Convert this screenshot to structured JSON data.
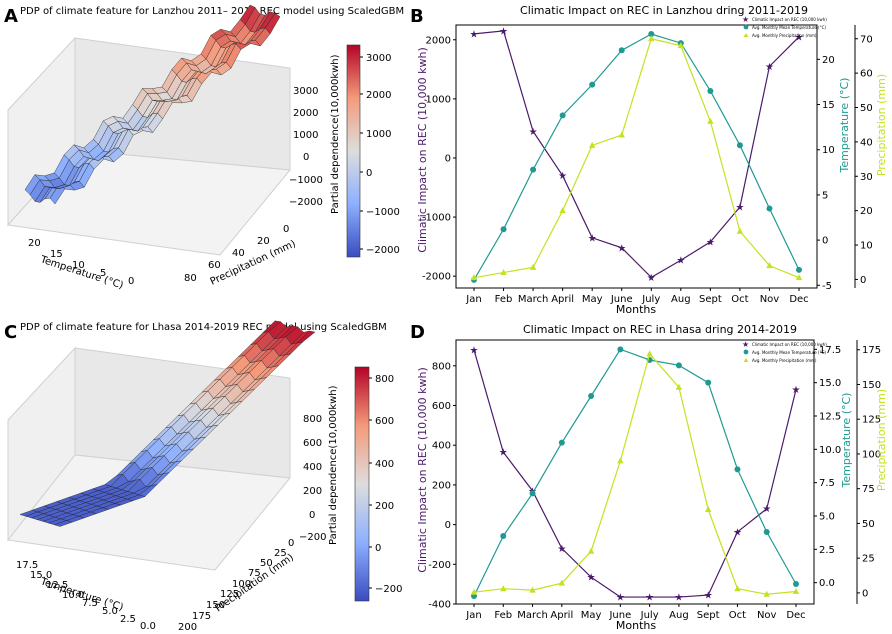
{
  "colors": {
    "impact": "#4b1a6b",
    "temp": "#1f9a93",
    "precip": "#c6e11e",
    "surfHigh": "#c3443a",
    "surfLow": "#4466c8",
    "surfMid": "#dcdcdc"
  },
  "panels": {
    "A": {
      "letter": "A",
      "title": "PDP of climate feature for Lanzhou 2011– 2019 REC model using ScaledGBM",
      "xlabel": "Temperature (°C)",
      "ylabel": "Precipitation (mm)",
      "zlabel": "Partial dependence(10,000kwh)",
      "xticks": [
        "20",
        "15",
        "10",
        "5",
        "0"
      ],
      "yticks": [
        "0",
        "20",
        "40",
        "60",
        "80"
      ],
      "zticks": [
        "3000",
        "2000",
        "1000",
        "0",
        "−1000",
        "−2000"
      ],
      "colorbar_ticks": [
        "3000",
        "2000",
        "1000",
        "0",
        "−1000",
        "−2000"
      ]
    },
    "C": {
      "letter": "C",
      "title": "PDP of climate feature for Lhasa 2014-2019 REC model using ScaledGBM",
      "xlabel": "Temperature (°C)",
      "ylabel": "Precipitation (mm)",
      "zlabel": "Partial dependence(10,000kwh)",
      "xticks": [
        "17.5",
        "15.0",
        "12.5",
        "10.0",
        "7.5",
        "5.0",
        "2.5",
        "0.0"
      ],
      "yticks": [
        "0",
        "25",
        "50",
        "75",
        "100",
        "125",
        "150",
        "175",
        "200"
      ],
      "zticks": [
        "800",
        "600",
        "400",
        "200",
        "0",
        "−200"
      ],
      "colorbar_ticks": [
        "800",
        "600",
        "400",
        "200",
        "0",
        "−200"
      ]
    },
    "B": {
      "letter": "B",
      "title": "Climatic Impact on REC in Lanzhou dring 2011-2019",
      "xlabel": "Months",
      "ylabel_left": "Climatic Impact on REC (10,000 kwh)",
      "ylabel_temp": "Temperature (°C)",
      "ylabel_precip": "Precipitation (mm)",
      "legend": [
        "Climatic Impact on REC (10,000 kwh)",
        "Avg. Monthly Mean Temperature (°C)",
        "Avg. Monthly Precipitation (mm)"
      ]
    },
    "D": {
      "letter": "D",
      "title": "Climatic Impact on REC in Lhasa dring 2014-2019",
      "xlabel": "Months",
      "ylabel_left": "Climatic Impact on REC (10,000 kwh)",
      "ylabel_temp": "Temperature (°C)",
      "ylabel_precip": "Precipitation (mm)",
      "legend": [
        "Climatic Impact on REC (10,000 kwh)",
        "Avg. Monthly Mean Temperature (°C)",
        "Avg. Monthly Precipitation (mm)"
      ]
    }
  },
  "chart_data": [
    {
      "type": "line",
      "panel": "B",
      "categories": [
        "Jan",
        "Feb",
        "March",
        "April",
        "May",
        "June",
        "July",
        "Aug",
        "Sept",
        "Oct",
        "Nov",
        "Dec"
      ],
      "series": [
        {
          "name": "Climatic Impact on REC (10,000 kwh)",
          "axis": "left",
          "values": [
            2100,
            2150,
            450,
            -300,
            -1350,
            -1520,
            -2020,
            -1730,
            -1420,
            -830,
            1550,
            2050
          ]
        },
        {
          "name": "Avg. Monthly Mean Temperature (°C)",
          "axis": "temp",
          "values": [
            -4.4,
            1.2,
            7.8,
            13.8,
            17.2,
            21.0,
            22.8,
            21.8,
            16.5,
            10.5,
            3.5,
            -3.3
          ]
        },
        {
          "name": "Avg. Monthly Precipitation (mm)",
          "axis": "precip",
          "values": [
            0.5,
            2.0,
            3.5,
            20.0,
            39.0,
            42.0,
            70.0,
            68.0,
            46.0,
            14.0,
            4.0,
            0.5
          ]
        }
      ],
      "left_ylim": [
        -2200,
        2250
      ],
      "left_ticks": [
        -2000,
        -1000,
        0,
        1000,
        2000
      ],
      "temp_ylim": [
        -5.3,
        23.8
      ],
      "temp_ticks": [
        -5,
        0,
        5,
        10,
        15,
        20
      ],
      "precip_ylim": [
        -2.5,
        74.0
      ],
      "precip_ticks": [
        0,
        10,
        20,
        30,
        40,
        50,
        60,
        70
      ]
    },
    {
      "type": "line",
      "panel": "D",
      "categories": [
        "Jan",
        "Feb",
        "March",
        "April",
        "May",
        "June",
        "July",
        "Aug",
        "Sept",
        "Oct",
        "Nov",
        "Dec"
      ],
      "series": [
        {
          "name": "Climatic Impact on REC (10,000 kwh)",
          "axis": "left",
          "values": [
            880,
            365,
            170,
            -120,
            -265,
            -365,
            -365,
            -365,
            -355,
            -37,
            80,
            680
          ]
        },
        {
          "name": "Avg. Monthly Mean Temperature (°C)",
          "axis": "temp",
          "values": [
            -1.0,
            3.5,
            6.7,
            10.5,
            14.0,
            17.5,
            16.7,
            16.3,
            15.0,
            8.5,
            3.8,
            -0.1
          ]
        },
        {
          "name": "Avg. Monthly Precipitation (mm)",
          "axis": "precip",
          "values": [
            0.5,
            3.0,
            2.0,
            7.0,
            30.0,
            95.0,
            172.0,
            148.0,
            60.0,
            3.0,
            -1.0,
            1.0
          ]
        }
      ],
      "left_ylim": [
        -400,
        930
      ],
      "left_ticks": [
        -400,
        -200,
        0,
        200,
        400,
        600,
        800
      ],
      "temp_ylim": [
        -1.6,
        18.2
      ],
      "temp_ticks": [
        0.0,
        2.5,
        5.0,
        7.5,
        10.0,
        12.5,
        15.0,
        17.5
      ],
      "precip_ylim": [
        -8.0,
        182.0
      ],
      "precip_ticks": [
        0,
        25,
        50,
        75,
        100,
        125,
        150,
        175
      ]
    }
  ]
}
